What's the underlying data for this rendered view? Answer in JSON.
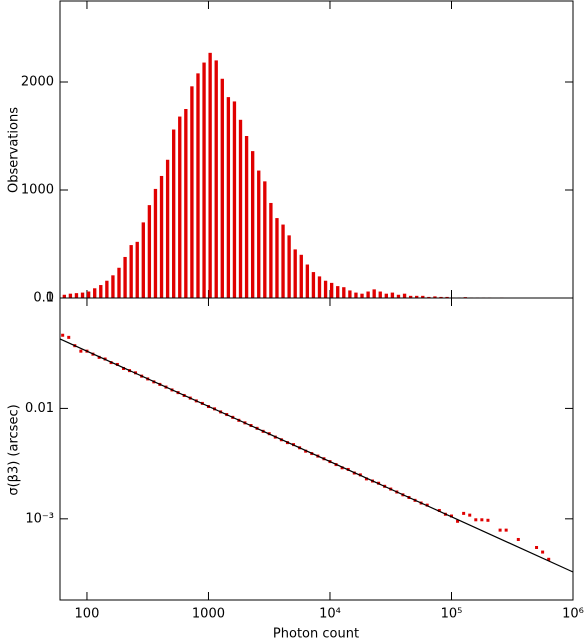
{
  "chart_data": [
    {
      "type": "histogram",
      "ylabel": "Observations",
      "log_x": true,
      "color": "#e00000",
      "xlim": [
        60,
        1000000
      ],
      "ylim": [
        0,
        2750
      ],
      "yticks": [
        0,
        1000,
        2000
      ],
      "bins": [
        63.1,
        70.8,
        79.4,
        89.1,
        100,
        112.2,
        125.9,
        141.3,
        158.5,
        177.8,
        199.5,
        223.9,
        251.2,
        281.8,
        316.2,
        354.8,
        398.1,
        446.7,
        501.2,
        562.3,
        631,
        707.9,
        794.3,
        891.3,
        1000,
        1122,
        1259,
        1413,
        1585,
        1778,
        1995,
        2239,
        2512,
        2818,
        3162,
        3548,
        3981,
        4467,
        5012,
        5623,
        6310,
        7079,
        7943,
        8913,
        10000,
        11220,
        12590,
        14130,
        15850,
        17780,
        19950,
        22390,
        25120,
        28180,
        31620,
        35480,
        39810,
        44670,
        50120,
        56230,
        63100,
        70790,
        79430,
        89130,
        100000,
        112200,
        125900,
        141300,
        158500,
        177800,
        199500,
        223900,
        251200,
        281800,
        316200,
        354800,
        398100,
        446700,
        501200,
        562300,
        631000
      ],
      "values": [
        30,
        40,
        45,
        50,
        60,
        90,
        120,
        160,
        210,
        280,
        380,
        490,
        520,
        700,
        860,
        1010,
        1130,
        1280,
        1560,
        1680,
        1750,
        1960,
        2080,
        2180,
        2270,
        2200,
        2030,
        1860,
        1820,
        1650,
        1500,
        1360,
        1180,
        1080,
        880,
        740,
        680,
        580,
        450,
        400,
        310,
        240,
        200,
        160,
        140,
        110,
        100,
        70,
        50,
        40,
        60,
        80,
        60,
        40,
        50,
        30,
        40,
        20,
        20,
        20,
        10,
        15,
        10,
        10,
        5,
        5,
        8,
        5,
        5,
        5,
        5,
        0,
        5,
        3,
        0,
        3,
        0,
        0,
        3,
        3
      ]
    },
    {
      "type": "scatter",
      "xlabel": "Photon count",
      "ylabel": "σ(β3) (arcsec)",
      "log_x": true,
      "log_y": true,
      "xlim": [
        60,
        1000000
      ],
      "ylim": [
        0.000184,
        0.1
      ],
      "xticks": [
        100,
        1000,
        {
          "value": 10000,
          "label": "10⁴"
        },
        {
          "value": 100000,
          "label": "10⁵"
        },
        {
          "value": 1000000,
          "label": "10⁶"
        }
      ],
      "yticks": [
        0.1,
        0.01,
        {
          "value": 0.001,
          "label": "10⁻³"
        }
      ],
      "series": [
        {
          "type": "scatter",
          "color": "#e00000",
          "x": [
            63.1,
            70.8,
            79.4,
            89.1,
            100,
            112,
            126,
            141,
            158,
            178,
            200,
            224,
            251,
            282,
            316,
            355,
            398,
            447,
            501,
            562,
            631,
            708,
            794,
            891,
            1000,
            1122,
            1259,
            1413,
            1585,
            1778,
            1995,
            2239,
            2512,
            2818,
            3162,
            3548,
            3981,
            4467,
            5012,
            5623,
            6310,
            7079,
            7943,
            8913,
            10000,
            11220,
            12590,
            14130,
            15850,
            17780,
            19950,
            22390,
            25120,
            28180,
            31620,
            35480,
            39810,
            44670,
            50120,
            56230,
            63100,
            79430,
            89130,
            100000,
            112200,
            125900,
            141300,
            158500,
            177800,
            199500,
            251200,
            281800,
            354800,
            501200,
            562300,
            631000
          ],
          "values": [
            0.046,
            0.044,
            0.037,
            0.033,
            0.033,
            0.031,
            0.029,
            0.028,
            0.026,
            0.025,
            0.023,
            0.022,
            0.021,
            0.0196,
            0.0185,
            0.0174,
            0.0165,
            0.0156,
            0.0147,
            0.0139,
            0.0131,
            0.0124,
            0.0117,
            0.0111,
            0.0104,
            0.0099,
            0.0093,
            0.0088,
            0.0083,
            0.0078,
            0.0074,
            0.007,
            0.0066,
            0.0062,
            0.0059,
            0.0055,
            0.0052,
            0.0049,
            0.0047,
            0.0044,
            0.0041,
            0.0039,
            0.0037,
            0.0035,
            0.0033,
            0.0031,
            0.0029,
            0.0028,
            0.0026,
            0.0025,
            0.0023,
            0.0022,
            0.0021,
            0.00197,
            0.00186,
            0.00175,
            0.00165,
            0.00156,
            0.00147,
            0.00139,
            0.00133,
            0.00119,
            0.0011,
            0.00106,
            0.00095,
            0.00112,
            0.00108,
            0.00098,
            0.00098,
            0.00097,
            0.00079,
            0.00079,
            0.00065,
            0.00055,
            0.0005,
            0.00043
          ]
        },
        {
          "type": "line",
          "color": "#000000",
          "x": [
            60,
            1000000
          ],
          "values": [
            0.0426,
            0.00033
          ]
        }
      ]
    }
  ]
}
